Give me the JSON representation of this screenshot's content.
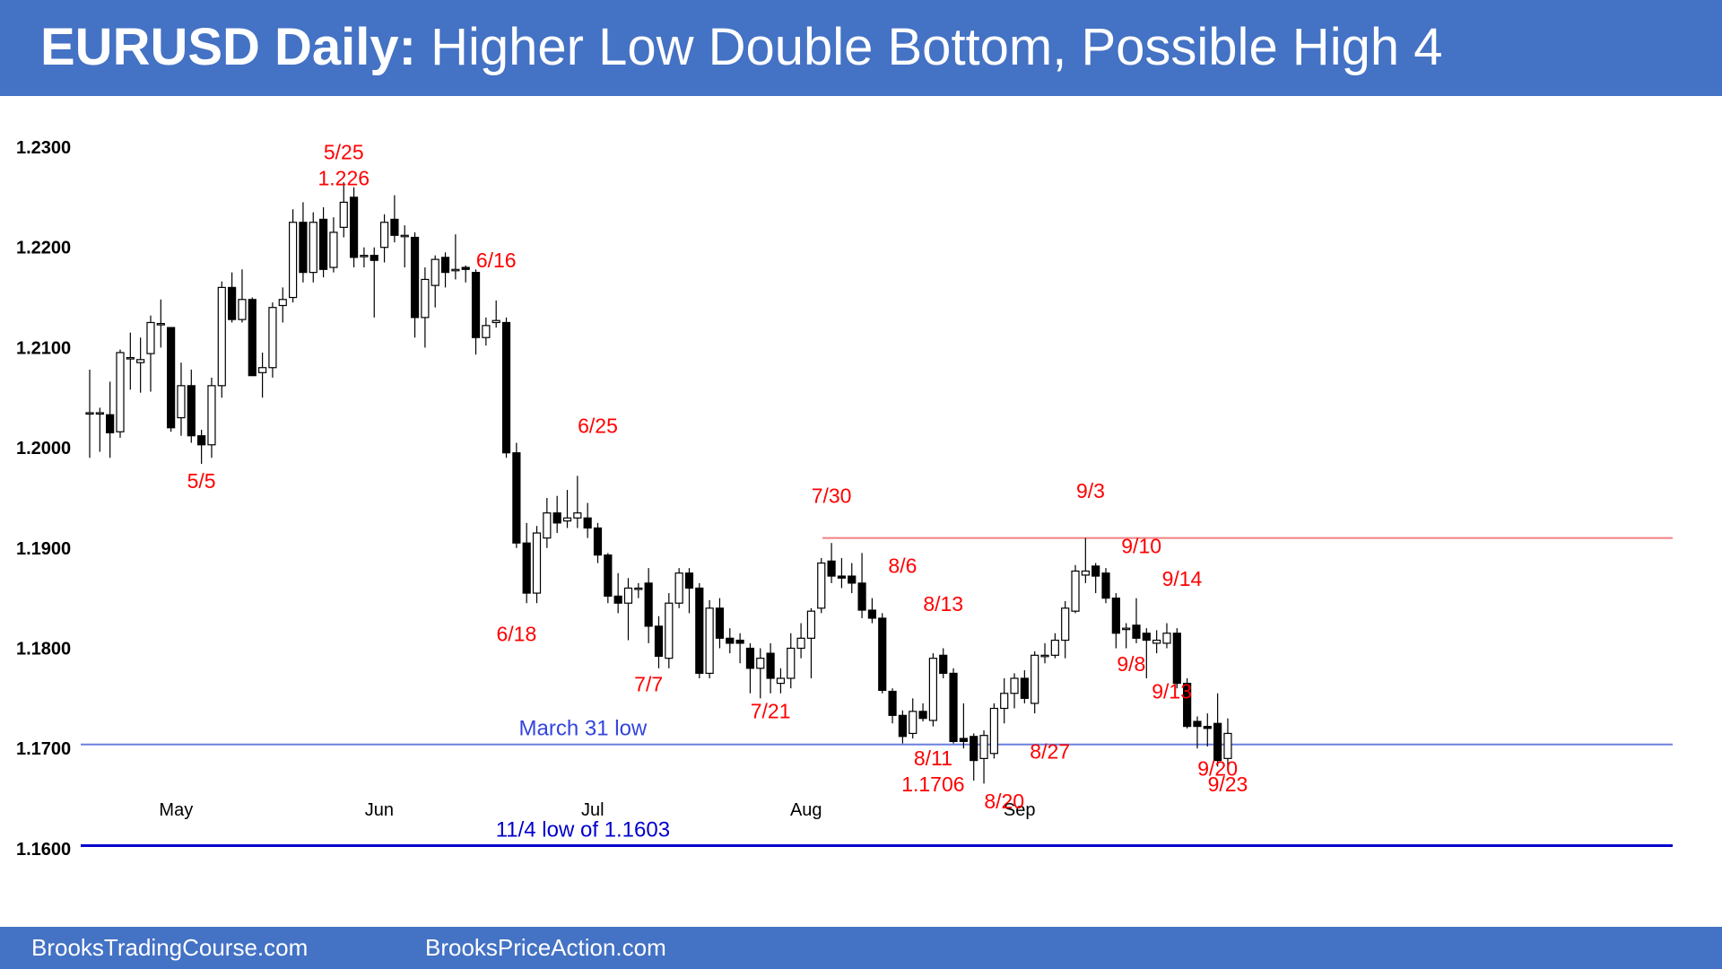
{
  "header": {
    "title_bold": "EURUSD Daily:",
    "title_rest": " Higher Low Double Bottom, Possible High 4"
  },
  "footer": {
    "link_1": "BrooksTradingCourse.com",
    "link_2": "BrooksPriceAction.com"
  },
  "colors": {
    "header_bg": "#4472c4",
    "annotation": "#ff0000",
    "level_line": "#6b7fe0",
    "strong_level_line": "#0000cc",
    "resistance_line": "#f08080",
    "bear_candle": "#000000",
    "bull_candle": "#ffffff"
  },
  "chart_data": {
    "type": "candlestick",
    "ylim": [
      1.1585,
      1.2335
    ],
    "yticks": [
      "1.1600",
      "1.1700",
      "1.1800",
      "1.1900",
      "1.2000",
      "1.2100",
      "1.2200",
      "1.2300"
    ],
    "xlabels": [
      {
        "label": "May",
        "index": 8.5
      },
      {
        "label": "Jun",
        "index": 28.5
      },
      {
        "label": "Jul",
        "index": 49.5
      },
      {
        "label": "Aug",
        "index": 70.5
      },
      {
        "label": "Sep",
        "index": 91.5
      }
    ],
    "candles": [
      [
        1.2035,
        1.2035,
        1.2078,
        1.199
      ],
      [
        1.2035,
        1.2035,
        1.204,
        1.1996
      ],
      [
        1.2033,
        1.2015,
        1.2066,
        1.199
      ],
      [
        1.2016,
        1.2095,
        1.2098,
        1.201
      ],
      [
        1.209,
        1.209,
        1.2115,
        1.2058
      ],
      [
        1.2085,
        1.2088,
        1.211,
        1.2055
      ],
      [
        1.2094,
        1.2125,
        1.2132,
        1.2056
      ],
      [
        1.2124,
        1.2124,
        1.2148,
        1.21
      ],
      [
        1.212,
        1.202,
        1.212,
        1.2016
      ],
      [
        1.203,
        1.2062,
        1.2085,
        1.2012
      ],
      [
        1.2062,
        1.2012,
        1.2078,
        1.2005
      ],
      [
        1.2012,
        1.2003,
        1.2018,
        1.1984
      ],
      [
        1.2003,
        1.2062,
        1.207,
        1.199
      ],
      [
        1.2062,
        1.216,
        1.2166,
        1.205
      ],
      [
        1.216,
        1.2128,
        1.2175,
        1.2125
      ],
      [
        1.2128,
        1.2148,
        1.2178,
        1.2125
      ],
      [
        1.2148,
        1.2072,
        1.215,
        1.2072
      ],
      [
        1.2075,
        1.208,
        1.2095,
        1.205
      ],
      [
        1.208,
        1.214,
        1.2145,
        1.207
      ],
      [
        1.2142,
        1.2148,
        1.216,
        1.2125
      ],
      [
        1.215,
        1.2225,
        1.2238,
        1.2145
      ],
      [
        1.2225,
        1.2175,
        1.2245,
        1.2165
      ],
      [
        1.2175,
        1.2225,
        1.2235,
        1.2165
      ],
      [
        1.2228,
        1.2178,
        1.224,
        1.217
      ],
      [
        1.218,
        1.2215,
        1.223,
        1.2175
      ],
      [
        1.222,
        1.2245,
        1.2265,
        1.221
      ],
      [
        1.225,
        1.219,
        1.226,
        1.218
      ],
      [
        1.2192,
        1.2192,
        1.22,
        1.218
      ],
      [
        1.2192,
        1.2187,
        1.22,
        1.213
      ],
      [
        1.22,
        1.2225,
        1.2233,
        1.2185
      ],
      [
        1.2228,
        1.2212,
        1.2252,
        1.2205
      ],
      [
        1.2212,
        1.2212,
        1.2222,
        1.218
      ],
      [
        1.221,
        1.213,
        1.2215,
        1.211
      ],
      [
        1.213,
        1.2168,
        1.218,
        1.21
      ],
      [
        1.2162,
        1.2188,
        1.2192,
        1.214
      ],
      [
        1.219,
        1.2175,
        1.2195,
        1.216
      ],
      [
        1.2178,
        1.2178,
        1.2213,
        1.2168
      ],
      [
        1.218,
        1.2178,
        1.2182,
        1.2165
      ],
      [
        1.2175,
        1.211,
        1.2178,
        1.2093
      ],
      [
        1.211,
        1.2122,
        1.213,
        1.2102
      ],
      [
        1.2125,
        1.2127,
        1.2147,
        1.212
      ],
      [
        1.2125,
        1.1995,
        1.213,
        1.199
      ],
      [
        1.1995,
        1.1905,
        1.2005,
        1.19
      ],
      [
        1.1905,
        1.1855,
        1.1925,
        1.1845
      ],
      [
        1.1855,
        1.1915,
        1.1922,
        1.1845
      ],
      [
        1.191,
        1.1935,
        1.195,
        1.19
      ],
      [
        1.1935,
        1.1925,
        1.1952,
        1.1915
      ],
      [
        1.1927,
        1.193,
        1.1958,
        1.192
      ],
      [
        1.193,
        1.1935,
        1.1972,
        1.192
      ],
      [
        1.193,
        1.192,
        1.1945,
        1.191
      ],
      [
        1.192,
        1.1893,
        1.1925,
        1.1885
      ],
      [
        1.1893,
        1.1852,
        1.1895,
        1.1845
      ],
      [
        1.1852,
        1.1845,
        1.1875,
        1.1835
      ],
      [
        1.1845,
        1.186,
        1.187,
        1.1808
      ],
      [
        1.186,
        1.186,
        1.1865,
        1.185
      ],
      [
        1.1865,
        1.1822,
        1.188,
        1.1805
      ],
      [
        1.1822,
        1.1792,
        1.1832,
        1.178
      ],
      [
        1.179,
        1.1845,
        1.1855,
        1.178
      ],
      [
        1.1845,
        1.1875,
        1.188,
        1.184
      ],
      [
        1.1875,
        1.186,
        1.188,
        1.1835
      ],
      [
        1.186,
        1.1775,
        1.1865,
        1.177
      ],
      [
        1.1775,
        1.184,
        1.1848,
        1.177
      ],
      [
        1.184,
        1.181,
        1.185,
        1.18
      ],
      [
        1.181,
        1.1805,
        1.182,
        1.1795
      ],
      [
        1.1808,
        1.1805,
        1.1815,
        1.1785
      ],
      [
        1.18,
        1.178,
        1.1805,
        1.1755
      ],
      [
        1.178,
        1.179,
        1.18,
        1.175
      ],
      [
        1.1795,
        1.177,
        1.1805,
        1.1755
      ],
      [
        1.1765,
        1.177,
        1.178,
        1.1755
      ],
      [
        1.177,
        1.18,
        1.1815,
        1.176
      ],
      [
        1.18,
        1.181,
        1.1825,
        1.179
      ],
      [
        1.181,
        1.1837,
        1.184,
        1.177
      ],
      [
        1.184,
        1.1885,
        1.189,
        1.1835
      ],
      [
        1.1887,
        1.1872,
        1.1905,
        1.1865
      ],
      [
        1.1872,
        1.187,
        1.189,
        1.186
      ],
      [
        1.1872,
        1.1865,
        1.1885,
        1.1855
      ],
      [
        1.1865,
        1.1838,
        1.1895,
        1.183
      ],
      [
        1.1838,
        1.183,
        1.185,
        1.1825
      ],
      [
        1.183,
        1.1758,
        1.1835,
        1.1755
      ],
      [
        1.1757,
        1.1733,
        1.176,
        1.1725
      ],
      [
        1.1733,
        1.1712,
        1.1738,
        1.1705
      ],
      [
        1.1715,
        1.1737,
        1.175,
        1.171
      ],
      [
        1.1737,
        1.173,
        1.1745,
        1.1727
      ],
      [
        1.1728,
        1.179,
        1.1795,
        1.1722
      ],
      [
        1.1793,
        1.1775,
        1.18,
        1.177
      ],
      [
        1.1775,
        1.1707,
        1.178,
        1.1705
      ],
      [
        1.171,
        1.1707,
        1.1745,
        1.17
      ],
      [
        1.1712,
        1.1688,
        1.1715,
        1.1668
      ],
      [
        1.169,
        1.1713,
        1.1718,
        1.1665
      ],
      [
        1.1695,
        1.174,
        1.1745,
        1.169
      ],
      [
        1.174,
        1.1755,
        1.177,
        1.1725
      ],
      [
        1.1755,
        1.177,
        1.1775,
        1.174
      ],
      [
        1.177,
        1.175,
        1.1778,
        1.1745
      ],
      [
        1.1745,
        1.1793,
        1.1797,
        1.1735
      ],
      [
        1.1793,
        1.1793,
        1.1805,
        1.1785
      ],
      [
        1.1793,
        1.1808,
        1.1815,
        1.179
      ],
      [
        1.1808,
        1.184,
        1.1847,
        1.179
      ],
      [
        1.1837,
        1.1877,
        1.1883,
        1.1835
      ],
      [
        1.1873,
        1.1877,
        1.191,
        1.1865
      ],
      [
        1.1882,
        1.1872,
        1.1885,
        1.1855
      ],
      [
        1.1875,
        1.185,
        1.188,
        1.1845
      ],
      [
        1.185,
        1.1815,
        1.1855,
        1.18
      ],
      [
        1.182,
        1.182,
        1.1825,
        1.18
      ],
      [
        1.1823,
        1.181,
        1.185,
        1.1805
      ],
      [
        1.1815,
        1.1808,
        1.182,
        1.177
      ],
      [
        1.1805,
        1.1808,
        1.1818,
        1.1795
      ],
      [
        1.1805,
        1.1815,
        1.1825,
        1.18
      ],
      [
        1.1815,
        1.1765,
        1.182,
        1.176
      ],
      [
        1.1765,
        1.1722,
        1.177,
        1.172
      ],
      [
        1.1727,
        1.1722,
        1.1732,
        1.17
      ],
      [
        1.1722,
        1.172,
        1.1735,
        1.1702
      ],
      [
        1.1725,
        1.1688,
        1.1755,
        1.1682
      ],
      [
        1.169,
        1.1715,
        1.173,
        1.168
      ]
    ],
    "annotations": [
      {
        "text": "5/25",
        "index": 25.0,
        "y": 1.2288
      },
      {
        "text": "1.226",
        "index": 25.0,
        "y": 1.2262
      },
      {
        "text": "5/5",
        "index": 11.0,
        "y": 1.196
      },
      {
        "text": "6/16",
        "index": 40.0,
        "y": 1.218
      },
      {
        "text": "6/25",
        "index": 50.0,
        "y": 1.2015
      },
      {
        "text": "6/18",
        "index": 42.0,
        "y": 1.1807
      },
      {
        "text": "7/7",
        "index": 55.0,
        "y": 1.1757
      },
      {
        "text": "7/21",
        "index": 67.0,
        "y": 1.173
      },
      {
        "text": "7/30",
        "index": 73.0,
        "y": 1.1945
      },
      {
        "text": "8/6",
        "index": 80.0,
        "y": 1.1875
      },
      {
        "text": "8/13",
        "index": 84.0,
        "y": 1.1837
      },
      {
        "text": "8/11",
        "index": 83.0,
        "y": 1.1683
      },
      {
        "text": "1.1706",
        "index": 83.0,
        "y": 1.1657
      },
      {
        "text": "8/20",
        "index": 90.0,
        "y": 1.164
      },
      {
        "text": "8/27",
        "index": 94.5,
        "y": 1.169
      },
      {
        "text": "9/3",
        "index": 98.5,
        "y": 1.195
      },
      {
        "text": "9/10",
        "index": 103.5,
        "y": 1.1895
      },
      {
        "text": "9/14",
        "index": 107.5,
        "y": 1.1862
      },
      {
        "text": "9/8",
        "index": 102.5,
        "y": 1.1777
      },
      {
        "text": "9/13",
        "index": 106.5,
        "y": 1.175
      },
      {
        "text": "9/20",
        "index": 111.0,
        "y": 1.1673
      },
      {
        "text": "9/23",
        "index": 112.0,
        "y": 1.1657
      }
    ],
    "levels": [
      {
        "label": "March 31 low",
        "value": 1.1704,
        "from_index": 0,
        "to_index": 114,
        "label_index": 30.0,
        "color": "#6b7fe0",
        "strong": false
      },
      {
        "label": "11/4 low of 1.1603",
        "value": 1.1603,
        "from_index": 0,
        "to_index": 114,
        "label_index": 30.0,
        "color": "#0000cc",
        "strong": true
      },
      {
        "label": "",
        "value": 1.191,
        "from_index": 73,
        "to_index": 114,
        "label_index": 0,
        "color": "#f08080",
        "strong": false
      }
    ],
    "grid": false,
    "legend": "none",
    "title": "",
    "xlabel": "",
    "ylabel": ""
  }
}
